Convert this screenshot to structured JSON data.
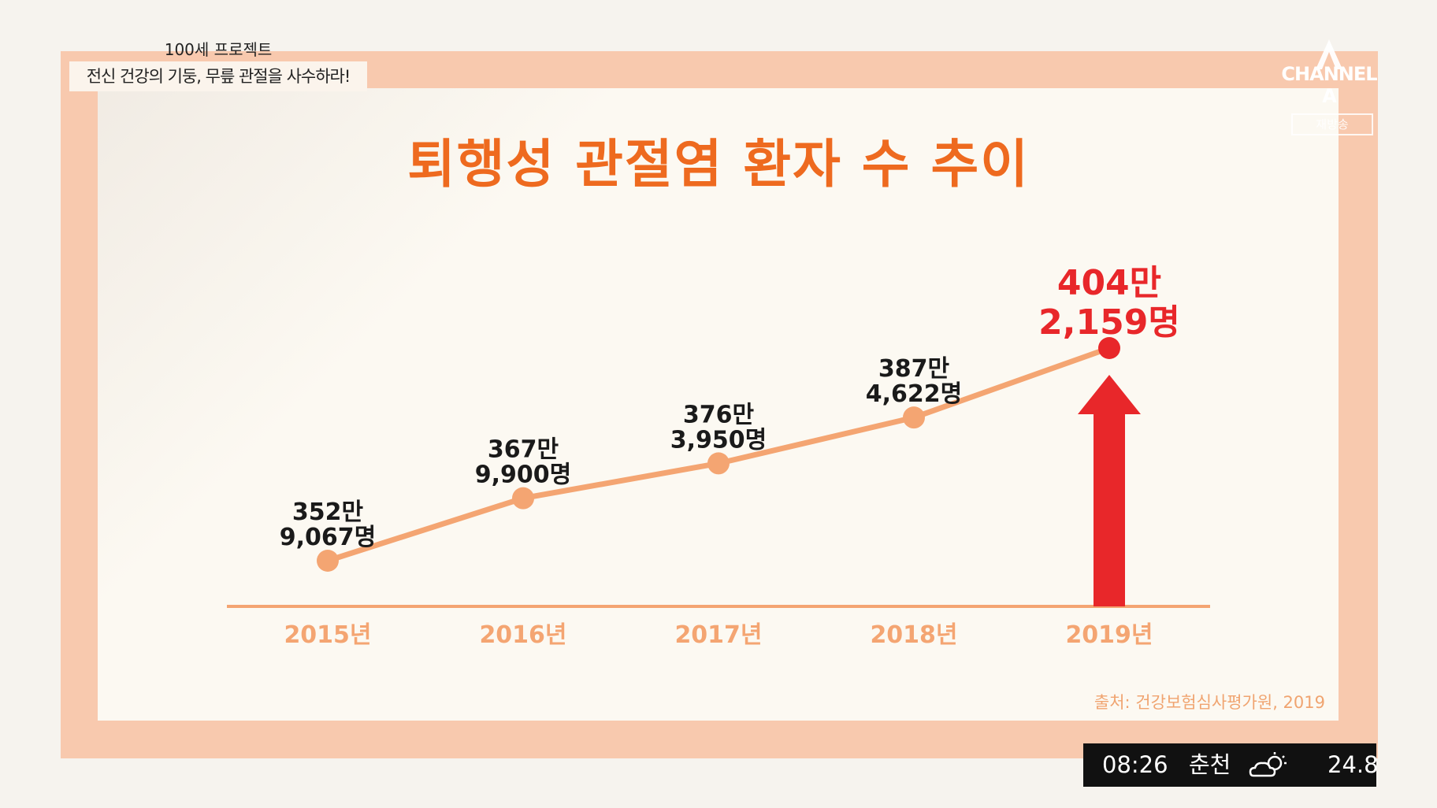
{
  "program": {
    "subtitle": "100세 프로젝트",
    "headline": "전신 건강의 기둥, 무릎 관절을 사수하라!"
  },
  "broadcaster": {
    "logo_text": "CHANNEL A",
    "badge_text": "재방송"
  },
  "colors": {
    "title": "#ee6a1f",
    "line": "#f4a572",
    "highlight": "#e8272a",
    "axis_label": "#f4a572",
    "frame": "#f8c9ae"
  },
  "chart_data": {
    "type": "line",
    "title": "퇴행성 관절염 환자 수 추이",
    "categories": [
      "2015년",
      "2016년",
      "2017년",
      "2018년",
      "2019년"
    ],
    "values": [
      3529067,
      3679900,
      3763950,
      3874622,
      4042159
    ],
    "data_labels": [
      [
        "352만",
        "9,067명"
      ],
      [
        "367만",
        "9,900명"
      ],
      [
        "376만",
        "3,950명"
      ],
      [
        "387만",
        "4,622명"
      ],
      [
        "404만",
        "2,159명"
      ]
    ],
    "highlight_index": 4,
    "highlight_marker": "arrow-up",
    "grid": false,
    "legend": "none"
  },
  "source": "출처: 건강보험심사평가원, 2019",
  "status": {
    "time": "08:26",
    "city": "춘천",
    "weather_icon": "partly-cloudy-icon",
    "temperature": "24.8"
  }
}
